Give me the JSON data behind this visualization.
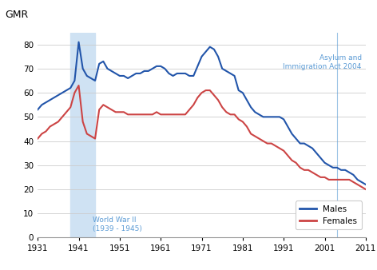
{
  "ylabel": "GMR",
  "ylim": [
    0,
    85
  ],
  "yticks": [
    0,
    10,
    20,
    30,
    40,
    50,
    60,
    70,
    80
  ],
  "xlim": [
    1931,
    2011
  ],
  "xticks": [
    1931,
    1941,
    1951,
    1961,
    1971,
    1981,
    1991,
    2001,
    2011
  ],
  "wwii_start": 1939,
  "wwii_end": 1945,
  "asylum_year": 2004,
  "wwii_label": "World War II\n(1939 - 1945)",
  "asylum_label": "Asylum and\nImmigration Act 2004",
  "annotation_color": "#5b9bd5",
  "males_color": "#2255aa",
  "females_color": "#cc4444",
  "shading_color": "#cfe2f3",
  "males": {
    "years": [
      1931,
      1932,
      1933,
      1934,
      1935,
      1936,
      1937,
      1938,
      1939,
      1940,
      1941,
      1942,
      1943,
      1944,
      1945,
      1946,
      1947,
      1948,
      1949,
      1950,
      1951,
      1952,
      1953,
      1954,
      1955,
      1956,
      1957,
      1958,
      1959,
      1960,
      1961,
      1962,
      1963,
      1964,
      1965,
      1966,
      1967,
      1968,
      1969,
      1970,
      1971,
      1972,
      1973,
      1974,
      1975,
      1976,
      1977,
      1978,
      1979,
      1980,
      1981,
      1982,
      1983,
      1984,
      1985,
      1986,
      1987,
      1988,
      1989,
      1990,
      1991,
      1992,
      1993,
      1994,
      1995,
      1996,
      1997,
      1998,
      1999,
      2000,
      2001,
      2002,
      2003,
      2004,
      2005,
      2006,
      2007,
      2008,
      2009,
      2010,
      2011
    ],
    "values": [
      53,
      55,
      56,
      57,
      58,
      59,
      60,
      61,
      62,
      65,
      81,
      70,
      67,
      66,
      65,
      72,
      73,
      70,
      69,
      68,
      67,
      67,
      66,
      67,
      68,
      68,
      69,
      69,
      70,
      71,
      71,
      70,
      68,
      67,
      68,
      68,
      68,
      67,
      67,
      71,
      75,
      77,
      79,
      78,
      75,
      70,
      69,
      68,
      67,
      61,
      60,
      57,
      54,
      52,
      51,
      50,
      50,
      50,
      50,
      50,
      49,
      46,
      43,
      41,
      39,
      39,
      38,
      37,
      35,
      33,
      31,
      30,
      29,
      29,
      28,
      28,
      27,
      26,
      24,
      23,
      22
    ]
  },
  "females": {
    "years": [
      1931,
      1932,
      1933,
      1934,
      1935,
      1936,
      1937,
      1938,
      1939,
      1940,
      1941,
      1942,
      1943,
      1944,
      1945,
      1946,
      1947,
      1948,
      1949,
      1950,
      1951,
      1952,
      1953,
      1954,
      1955,
      1956,
      1957,
      1958,
      1959,
      1960,
      1961,
      1962,
      1963,
      1964,
      1965,
      1966,
      1967,
      1968,
      1969,
      1970,
      1971,
      1972,
      1973,
      1974,
      1975,
      1976,
      1977,
      1978,
      1979,
      1980,
      1981,
      1982,
      1983,
      1984,
      1985,
      1986,
      1987,
      1988,
      1989,
      1990,
      1991,
      1992,
      1993,
      1994,
      1995,
      1996,
      1997,
      1998,
      1999,
      2000,
      2001,
      2002,
      2003,
      2004,
      2005,
      2006,
      2007,
      2008,
      2009,
      2010,
      2011
    ],
    "values": [
      41,
      43,
      44,
      46,
      47,
      48,
      50,
      52,
      54,
      60,
      63,
      48,
      43,
      42,
      41,
      53,
      55,
      54,
      53,
      52,
      52,
      52,
      51,
      51,
      51,
      51,
      51,
      51,
      51,
      52,
      51,
      51,
      51,
      51,
      51,
      51,
      51,
      53,
      55,
      58,
      60,
      61,
      61,
      59,
      57,
      54,
      52,
      51,
      51,
      49,
      48,
      46,
      43,
      42,
      41,
      40,
      39,
      39,
      38,
      37,
      36,
      34,
      32,
      31,
      29,
      28,
      28,
      27,
      26,
      25,
      25,
      24,
      24,
      24,
      24,
      24,
      24,
      23,
      22,
      21,
      20
    ]
  }
}
